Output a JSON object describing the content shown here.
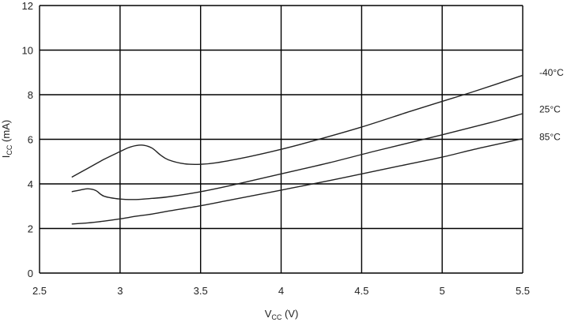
{
  "chart_data": {
    "type": "line",
    "title": "",
    "xlabel": {
      "main": "V",
      "sub": "CC",
      "unit": " (V)"
    },
    "ylabel": {
      "main": "I",
      "sub": "CC",
      "unit": " (mA)"
    },
    "xlim": [
      2.5,
      5.5
    ],
    "ylim": [
      0,
      12
    ],
    "xticks": [
      2.5,
      3,
      3.5,
      4,
      4.5,
      5,
      5.5
    ],
    "xtick_labels": [
      "2.5",
      "3",
      "3.5",
      "4",
      "4.5",
      "5",
      "5.5"
    ],
    "yticks": [
      0,
      2,
      4,
      6,
      8,
      10,
      12
    ],
    "ytick_labels": [
      "0",
      "2",
      "4",
      "6",
      "8",
      "10",
      "12"
    ],
    "grid": true,
    "legend": "inline-right",
    "series": [
      {
        "name": "-40°C",
        "x": [
          2.7,
          2.8,
          2.9,
          3.0,
          3.05,
          3.1,
          3.15,
          3.2,
          3.25,
          3.3,
          3.4,
          3.5,
          3.6,
          3.8,
          4.0,
          4.2,
          4.5,
          4.8,
          5.0,
          5.2,
          5.5
        ],
        "y": [
          4.3,
          4.7,
          5.1,
          5.45,
          5.62,
          5.72,
          5.73,
          5.6,
          5.3,
          5.08,
          4.9,
          4.88,
          4.95,
          5.22,
          5.55,
          5.93,
          6.55,
          7.25,
          7.7,
          8.15,
          8.87
        ]
      },
      {
        "name": "25°C",
        "x": [
          2.7,
          2.75,
          2.8,
          2.85,
          2.9,
          3.0,
          3.1,
          3.2,
          3.3,
          3.5,
          3.7,
          4.0,
          4.3,
          4.6,
          5.0,
          5.3,
          5.5
        ],
        "y": [
          3.65,
          3.72,
          3.78,
          3.7,
          3.45,
          3.32,
          3.3,
          3.35,
          3.42,
          3.65,
          3.95,
          4.45,
          4.95,
          5.5,
          6.2,
          6.75,
          7.15
        ]
      },
      {
        "name": "85°C",
        "x": [
          2.7,
          2.8,
          2.9,
          3.0,
          3.1,
          3.2,
          3.3,
          3.5,
          3.7,
          4.0,
          4.3,
          4.6,
          4.8,
          5.0,
          5.2,
          5.4,
          5.5
        ],
        "y": [
          2.2,
          2.25,
          2.33,
          2.43,
          2.55,
          2.65,
          2.78,
          3.02,
          3.3,
          3.72,
          4.15,
          4.6,
          4.9,
          5.2,
          5.55,
          5.87,
          6.03
        ]
      }
    ],
    "series_label_values": [
      9.0,
      7.35,
      6.1
    ]
  }
}
